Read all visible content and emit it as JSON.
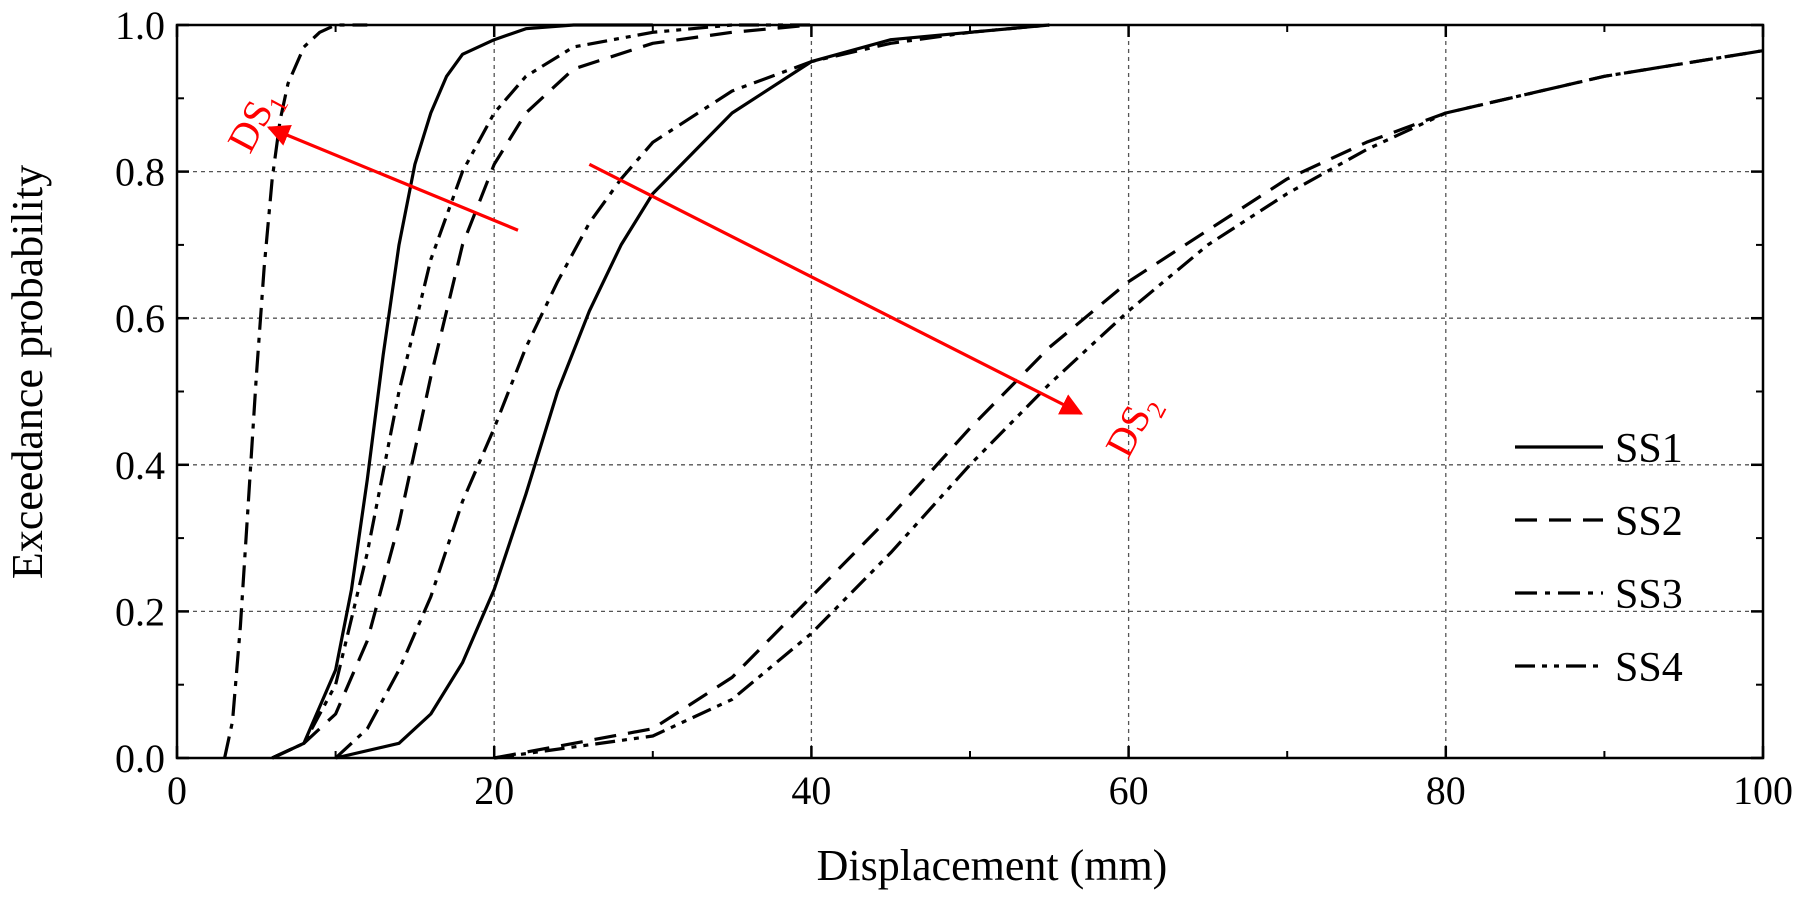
{
  "chart_data": {
    "type": "line",
    "title": "",
    "xlabel": "Displacement (mm)",
    "ylabel": "Exceedance probability",
    "xlim": [
      0,
      100
    ],
    "ylim": [
      0,
      1
    ],
    "xticks": [
      "0",
      "20",
      "40",
      "60",
      "80",
      "100"
    ],
    "yticks": [
      "0.0",
      "0.2",
      "0.4",
      "0.6",
      "0.8",
      "1.0"
    ],
    "grid": true,
    "legend_position": "bottom-right",
    "legend": [
      "SS1",
      "SS2",
      "SS3",
      "SS4"
    ],
    "series": [
      {
        "name": "SS1",
        "damage_state": "DS1",
        "x": [
          6,
          8,
          10,
          11,
          12,
          13,
          14,
          15,
          16,
          17,
          18,
          20,
          22,
          25,
          30
        ],
        "y": [
          0.0,
          0.02,
          0.12,
          0.23,
          0.38,
          0.55,
          0.7,
          0.81,
          0.88,
          0.93,
          0.96,
          0.98,
          0.995,
          1.0,
          1.0
        ]
      },
      {
        "name": "SS2",
        "damage_state": "DS1",
        "x": [
          6,
          8,
          10,
          12,
          14,
          16,
          18,
          20,
          22,
          25,
          30,
          35,
          40
        ],
        "y": [
          0.0,
          0.02,
          0.06,
          0.16,
          0.32,
          0.52,
          0.7,
          0.81,
          0.88,
          0.94,
          0.975,
          0.99,
          1.0
        ]
      },
      {
        "name": "SS3",
        "damage_state": "DS1",
        "x": [
          3,
          3.5,
          4,
          4.5,
          5,
          5.5,
          6,
          6.5,
          7,
          8,
          9,
          10,
          12
        ],
        "y": [
          0.0,
          0.05,
          0.18,
          0.35,
          0.52,
          0.67,
          0.79,
          0.87,
          0.92,
          0.97,
          0.99,
          1.0,
          1.0
        ]
      },
      {
        "name": "SS4",
        "damage_state": "DS1",
        "x": [
          6,
          8,
          10,
          12,
          14,
          16,
          18,
          20,
          22,
          25,
          30,
          35,
          40
        ],
        "y": [
          0.0,
          0.02,
          0.1,
          0.28,
          0.5,
          0.68,
          0.8,
          0.88,
          0.93,
          0.97,
          0.99,
          1.0,
          1.0
        ]
      },
      {
        "name": "SS1",
        "damage_state": "DS2",
        "x": [
          10,
          14,
          16,
          18,
          20,
          22,
          24,
          26,
          28,
          30,
          35,
          40,
          45,
          50,
          55
        ],
        "y": [
          0.0,
          0.02,
          0.06,
          0.13,
          0.23,
          0.36,
          0.5,
          0.61,
          0.7,
          0.77,
          0.88,
          0.95,
          0.98,
          0.99,
          1.0
        ]
      },
      {
        "name": "SS2",
        "damage_state": "DS2",
        "x": [
          20,
          30,
          35,
          40,
          45,
          50,
          55,
          60,
          65,
          70,
          75,
          80,
          90,
          100
        ],
        "y": [
          0.0,
          0.04,
          0.11,
          0.22,
          0.33,
          0.45,
          0.56,
          0.65,
          0.72,
          0.79,
          0.84,
          0.88,
          0.93,
          0.965
        ]
      },
      {
        "name": "SS3",
        "damage_state": "DS2",
        "x": [
          10,
          12,
          14,
          16,
          18,
          20,
          22,
          24,
          26,
          28,
          30,
          35,
          40,
          45,
          50,
          55
        ],
        "y": [
          0.0,
          0.04,
          0.12,
          0.22,
          0.35,
          0.45,
          0.56,
          0.65,
          0.73,
          0.79,
          0.84,
          0.91,
          0.95,
          0.975,
          0.99,
          1.0
        ]
      },
      {
        "name": "SS4",
        "damage_state": "DS2",
        "x": [
          20,
          30,
          35,
          40,
          45,
          50,
          55,
          60,
          65,
          70,
          75,
          80,
          90,
          100
        ],
        "y": [
          0.0,
          0.03,
          0.08,
          0.17,
          0.28,
          0.4,
          0.51,
          0.61,
          0.7,
          0.77,
          0.83,
          0.88,
          0.93,
          0.965
        ]
      }
    ],
    "annotations": [
      {
        "text": "DS",
        "subscript": "1",
        "color": "#ff0000"
      },
      {
        "text": "DS",
        "subscript": "2",
        "color": "#ff0000"
      }
    ]
  }
}
